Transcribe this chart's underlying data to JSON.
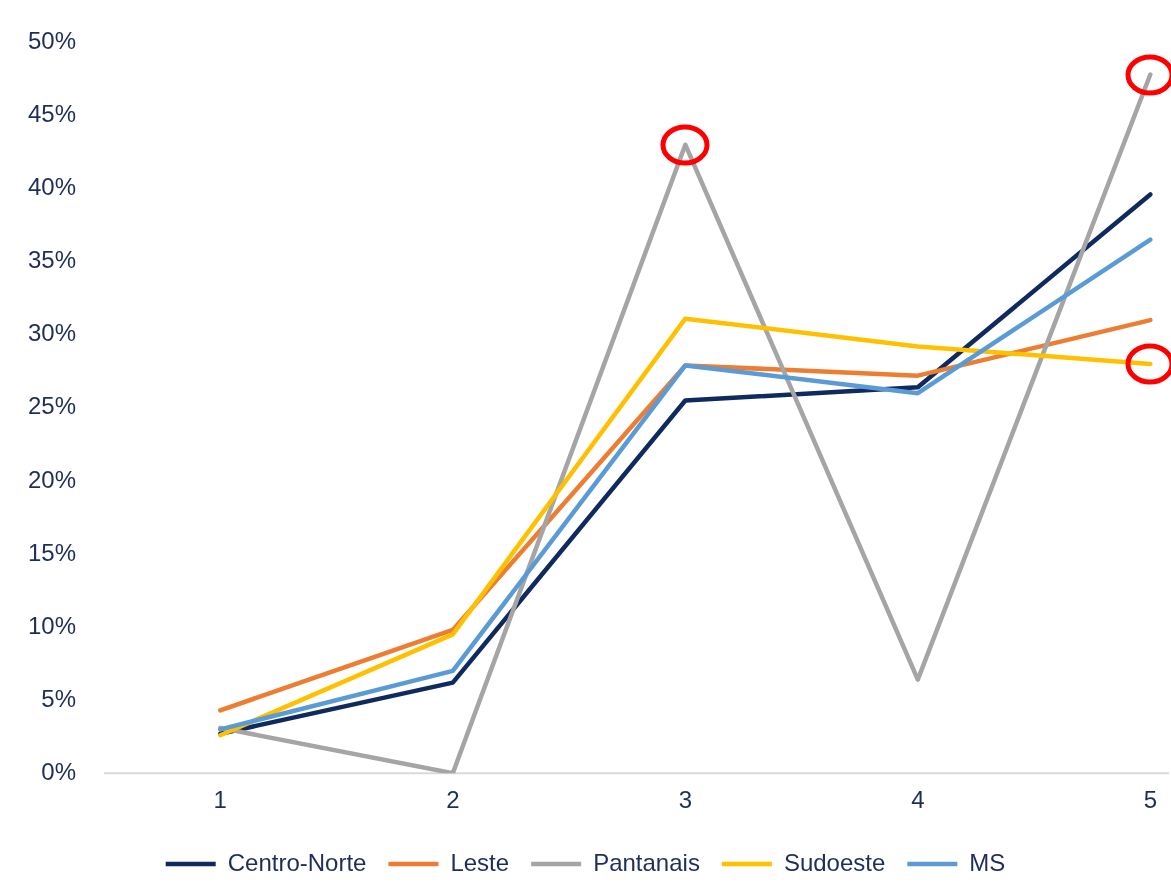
{
  "chart_data": {
    "type": "line",
    "x": [
      1,
      2,
      3,
      4,
      5
    ],
    "xlim": [
      0.5,
      5.08
    ],
    "xticks": [
      1,
      2,
      3,
      4,
      5
    ],
    "ylim": [
      0,
      50
    ],
    "yticks": [
      {
        "value": 0,
        "label": "0%"
      },
      {
        "value": 5,
        "label": "5%"
      },
      {
        "value": 10,
        "label": "10%"
      },
      {
        "value": 15,
        "label": "15%"
      },
      {
        "value": 20,
        "label": "20%"
      },
      {
        "value": 25,
        "label": "25%"
      },
      {
        "value": 30,
        "label": "30%"
      },
      {
        "value": 35,
        "label": "35%"
      },
      {
        "value": 40,
        "label": "40%"
      },
      {
        "value": 45,
        "label": "45%"
      },
      {
        "value": 50,
        "label": "50%"
      }
    ],
    "grid": false,
    "legend": "bottom",
    "marker": "none",
    "line_style": "solid",
    "series": [
      {
        "name": "Centro-Norte",
        "color": "#0e2a5e",
        "values": [
          2.7,
          6.2,
          25.5,
          26.4,
          39.6
        ]
      },
      {
        "name": "Leste",
        "color": "#ed7d31",
        "values": [
          4.3,
          9.8,
          27.9,
          27.2,
          31.0
        ]
      },
      {
        "name": "Pantanais",
        "color": "#a5a5a5",
        "values": [
          3.1,
          0,
          43.0,
          6.4,
          47.8
        ]
      },
      {
        "name": "Sudoeste",
        "color": "#ffc000",
        "values": [
          2.6,
          9.5,
          31.1,
          29.2,
          28.0
        ]
      },
      {
        "name": "MS",
        "color": "#5b9bd5",
        "values": [
          3.0,
          7.0,
          27.9,
          26.0,
          36.5
        ]
      }
    ]
  }
}
